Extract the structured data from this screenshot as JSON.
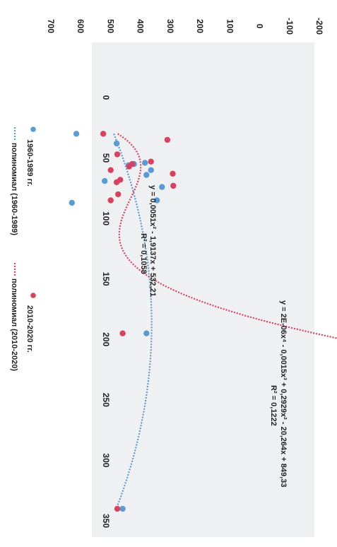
{
  "chart_data": {
    "type": "scatter",
    "orientation": "rotated-90-clockwise",
    "x_ticks": [
      "0",
      "50",
      "100",
      "150",
      "200",
      "250",
      "300",
      "350"
    ],
    "y_ticks": [
      "-200",
      "-100",
      "0",
      "100",
      "200",
      "300",
      "400",
      "500",
      "600",
      "700"
    ],
    "xlim": [
      0,
      350
    ],
    "ylim": [
      -200,
      700
    ],
    "grid": false,
    "legend_position": "bottom",
    "series": [
      {
        "name": "1960-1989 гг.",
        "color": "#5b9bd5",
        "points": [
          [
            30,
            605
          ],
          [
            38,
            470
          ],
          [
            54,
            375
          ],
          [
            55,
            412
          ],
          [
            56,
            430
          ],
          [
            60,
            355
          ],
          [
            64,
            370
          ],
          [
            69,
            510
          ],
          [
            74,
            318
          ],
          [
            85,
            335
          ],
          [
            87,
            620
          ],
          [
            195,
            370
          ],
          [
            340,
            450
          ]
        ]
      },
      {
        "name": "2010-2020 гг.",
        "color": "#d9415f",
        "points": [
          [
            30,
            515
          ],
          [
            35,
            300
          ],
          [
            47,
            468
          ],
          [
            53,
            355
          ],
          [
            55,
            418
          ],
          [
            57,
            428
          ],
          [
            60,
            490
          ],
          [
            63,
            282
          ],
          [
            68,
            458
          ],
          [
            70,
            470
          ],
          [
            73,
            280
          ],
          [
            80,
            465
          ],
          [
            85,
            490
          ],
          [
            195,
            450
          ],
          [
            340,
            468
          ]
        ]
      }
    ],
    "trendlines": [
      {
        "name": "полиномиал (1960-1989)",
        "color": "#5b9bd5",
        "equation": "y = 0,0051x² - 1,9137x + 532,21",
        "r2": "R² = 0,1058",
        "coefficients": [
          532.21,
          -1.9137,
          0.0051
        ]
      },
      {
        "name": "полиномиал (2010-2020)",
        "color": "#d9415f",
        "equation": "y = 2E-06x⁴ - 0,0015x³ + 0,2929x² - 20,264x + 849,33",
        "r2": "R² = 0,1222",
        "coefficients": [
          849.33,
          -20.264,
          0.2929,
          -0.0015,
          2e-06
        ]
      }
    ]
  }
}
